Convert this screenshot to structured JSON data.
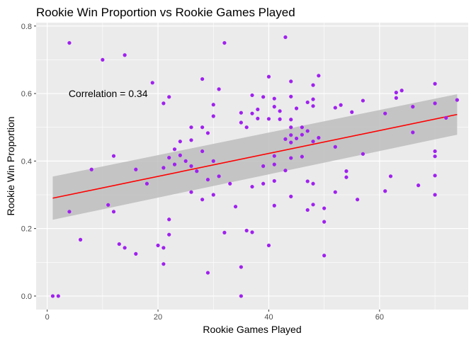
{
  "chart_data": {
    "type": "scatter",
    "title": "Rookie Win Proportion vs Rookie Games Played",
    "xlabel": "Rookie Games Played",
    "ylabel": "Rookie Win Proportion",
    "xlim": [
      -2,
      76
    ],
    "ylim": [
      -0.04,
      0.81
    ],
    "xticks": [
      0,
      20,
      40,
      60
    ],
    "xtick_labels": [
      "0",
      "20",
      "40",
      "60"
    ],
    "yticks": [
      0.0,
      0.2,
      0.4,
      0.6,
      0.8
    ],
    "ytick_labels": [
      "0.0",
      "0.2",
      "0.4",
      "0.6",
      "0.8"
    ],
    "grid": true,
    "annotation": {
      "text": "Correlation = 0.34",
      "x": 11,
      "y": 0.6
    },
    "colors": {
      "points": "#a020f0",
      "fit_line": "#ff0000",
      "ribbon": "#bdbdbd",
      "panel_bg": "#ebebeb",
      "grid": "#ffffff"
    },
    "fit": {
      "x": [
        1,
        74
      ],
      "y": [
        0.29,
        0.538
      ],
      "band_lower": [
        0.226,
        0.478
      ],
      "band_upper": [
        0.354,
        0.598
      ]
    },
    "points": [
      {
        "x": 1,
        "y": 0.0
      },
      {
        "x": 2,
        "y": 0.0
      },
      {
        "x": 4,
        "y": 0.75
      },
      {
        "x": 4,
        "y": 0.25
      },
      {
        "x": 6,
        "y": 0.167
      },
      {
        "x": 8,
        "y": 0.375
      },
      {
        "x": 10,
        "y": 0.7
      },
      {
        "x": 11,
        "y": 0.27
      },
      {
        "x": 12,
        "y": 0.415
      },
      {
        "x": 12,
        "y": 0.25
      },
      {
        "x": 13,
        "y": 0.154
      },
      {
        "x": 14,
        "y": 0.714
      },
      {
        "x": 14,
        "y": 0.143
      },
      {
        "x": 16,
        "y": 0.375
      },
      {
        "x": 16,
        "y": 0.125
      },
      {
        "x": 18,
        "y": 0.333
      },
      {
        "x": 19,
        "y": 0.632
      },
      {
        "x": 20,
        "y": 0.15
      },
      {
        "x": 21,
        "y": 0.571
      },
      {
        "x": 21,
        "y": 0.38
      },
      {
        "x": 21,
        "y": 0.143
      },
      {
        "x": 21,
        "y": 0.095
      },
      {
        "x": 22,
        "y": 0.59
      },
      {
        "x": 22,
        "y": 0.41
      },
      {
        "x": 22,
        "y": 0.227
      },
      {
        "x": 22,
        "y": 0.182
      },
      {
        "x": 23,
        "y": 0.435
      },
      {
        "x": 23,
        "y": 0.39
      },
      {
        "x": 24,
        "y": 0.458
      },
      {
        "x": 24,
        "y": 0.417
      },
      {
        "x": 25,
        "y": 0.4
      },
      {
        "x": 26,
        "y": 0.5
      },
      {
        "x": 26,
        "y": 0.462
      },
      {
        "x": 26,
        "y": 0.385
      },
      {
        "x": 26,
        "y": 0.308
      },
      {
        "x": 27,
        "y": 0.37
      },
      {
        "x": 28,
        "y": 0.643
      },
      {
        "x": 28,
        "y": 0.5
      },
      {
        "x": 28,
        "y": 0.429
      },
      {
        "x": 28,
        "y": 0.286
      },
      {
        "x": 29,
        "y": 0.483
      },
      {
        "x": 29,
        "y": 0.345
      },
      {
        "x": 29,
        "y": 0.069
      },
      {
        "x": 30,
        "y": 0.567
      },
      {
        "x": 30,
        "y": 0.533
      },
      {
        "x": 30,
        "y": 0.4
      },
      {
        "x": 30,
        "y": 0.3
      },
      {
        "x": 31,
        "y": 0.613
      },
      {
        "x": 31,
        "y": 0.355
      },
      {
        "x": 32,
        "y": 0.75
      },
      {
        "x": 32,
        "y": 0.188
      },
      {
        "x": 33,
        "y": 0.333
      },
      {
        "x": 34,
        "y": 0.265
      },
      {
        "x": 35,
        "y": 0.543
      },
      {
        "x": 35,
        "y": 0.514
      },
      {
        "x": 35,
        "y": 0.086
      },
      {
        "x": 35,
        "y": 0.0
      },
      {
        "x": 36,
        "y": 0.5
      },
      {
        "x": 36,
        "y": 0.194
      },
      {
        "x": 37,
        "y": 0.595
      },
      {
        "x": 37,
        "y": 0.541
      },
      {
        "x": 37,
        "y": 0.324
      },
      {
        "x": 37,
        "y": 0.189
      },
      {
        "x": 38,
        "y": 0.553
      },
      {
        "x": 38,
        "y": 0.526
      },
      {
        "x": 39,
        "y": 0.59
      },
      {
        "x": 39,
        "y": 0.385
      },
      {
        "x": 39,
        "y": 0.333
      },
      {
        "x": 40,
        "y": 0.65
      },
      {
        "x": 40,
        "y": 0.525
      },
      {
        "x": 40,
        "y": 0.15
      },
      {
        "x": 41,
        "y": 0.585
      },
      {
        "x": 41,
        "y": 0.561
      },
      {
        "x": 41,
        "y": 0.415
      },
      {
        "x": 41,
        "y": 0.39
      },
      {
        "x": 41,
        "y": 0.341
      },
      {
        "x": 41,
        "y": 0.268
      },
      {
        "x": 42,
        "y": 0.548
      },
      {
        "x": 42,
        "y": 0.524
      },
      {
        "x": 43,
        "y": 0.767
      },
      {
        "x": 43,
        "y": 0.465
      },
      {
        "x": 43,
        "y": 0.372
      },
      {
        "x": 44,
        "y": 0.636
      },
      {
        "x": 44,
        "y": 0.591
      },
      {
        "x": 44,
        "y": 0.523
      },
      {
        "x": 44,
        "y": 0.5
      },
      {
        "x": 44,
        "y": 0.477
      },
      {
        "x": 44,
        "y": 0.455
      },
      {
        "x": 44,
        "y": 0.409
      },
      {
        "x": 44,
        "y": 0.295
      },
      {
        "x": 45,
        "y": 0.556
      },
      {
        "x": 45,
        "y": 0.467
      },
      {
        "x": 46,
        "y": 0.5
      },
      {
        "x": 46,
        "y": 0.478
      },
      {
        "x": 46,
        "y": 0.413
      },
      {
        "x": 47,
        "y": 0.574
      },
      {
        "x": 47,
        "y": 0.489
      },
      {
        "x": 47,
        "y": 0.34
      },
      {
        "x": 47,
        "y": 0.255
      },
      {
        "x": 48,
        "y": 0.625
      },
      {
        "x": 48,
        "y": 0.583
      },
      {
        "x": 48,
        "y": 0.563
      },
      {
        "x": 48,
        "y": 0.458
      },
      {
        "x": 48,
        "y": 0.333
      },
      {
        "x": 48,
        "y": 0.271
      },
      {
        "x": 49,
        "y": 0.653
      },
      {
        "x": 49,
        "y": 0.469
      },
      {
        "x": 50,
        "y": 0.26
      },
      {
        "x": 50,
        "y": 0.22
      },
      {
        "x": 50,
        "y": 0.12
      },
      {
        "x": 52,
        "y": 0.558
      },
      {
        "x": 52,
        "y": 0.442
      },
      {
        "x": 52,
        "y": 0.308
      },
      {
        "x": 53,
        "y": 0.566
      },
      {
        "x": 54,
        "y": 0.37
      },
      {
        "x": 54,
        "y": 0.352
      },
      {
        "x": 55,
        "y": 0.545
      },
      {
        "x": 56,
        "y": 0.286
      },
      {
        "x": 57,
        "y": 0.579
      },
      {
        "x": 57,
        "y": 0.421
      },
      {
        "x": 61,
        "y": 0.541
      },
      {
        "x": 61,
        "y": 0.311
      },
      {
        "x": 62,
        "y": 0.355
      },
      {
        "x": 63,
        "y": 0.603
      },
      {
        "x": 63,
        "y": 0.587
      },
      {
        "x": 64,
        "y": 0.609
      },
      {
        "x": 66,
        "y": 0.561
      },
      {
        "x": 66,
        "y": 0.485
      },
      {
        "x": 67,
        "y": 0.328
      },
      {
        "x": 70,
        "y": 0.629
      },
      {
        "x": 70,
        "y": 0.571
      },
      {
        "x": 70,
        "y": 0.429
      },
      {
        "x": 70,
        "y": 0.414
      },
      {
        "x": 70,
        "y": 0.357
      },
      {
        "x": 70,
        "y": 0.3
      },
      {
        "x": 72,
        "y": 0.528
      },
      {
        "x": 74,
        "y": 0.581
      }
    ]
  }
}
